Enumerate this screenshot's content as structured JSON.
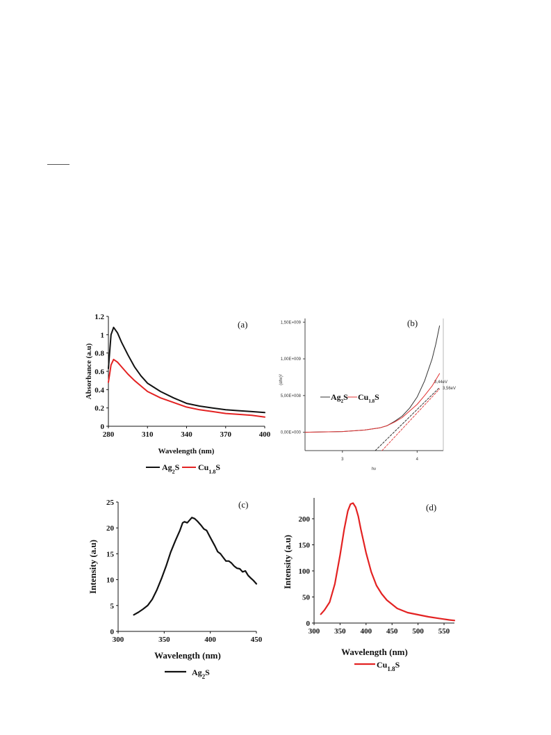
{
  "chart_data": [
    {
      "type": "line",
      "panel": "(a)",
      "xlabel": "Wavelength (nm)",
      "ylabel": "Absorbance (a.u)",
      "xlim": [
        280,
        400
      ],
      "ylim": [
        0,
        1.2
      ],
      "xticks": [
        "280",
        "310",
        "340",
        "370",
        "400"
      ],
      "yticks": [
        "0",
        "0.2",
        "0.4",
        "0.6",
        "0.8",
        "1",
        "1.2"
      ],
      "legend": "bottom",
      "series": [
        {
          "name": "Ag2S",
          "color": "#111111",
          "x": [
            280,
            282,
            284,
            287,
            290,
            295,
            300,
            305,
            310,
            320,
            330,
            340,
            350,
            360,
            370,
            380,
            390,
            400
          ],
          "y": [
            0.63,
            1.0,
            1.08,
            1.02,
            0.92,
            0.78,
            0.65,
            0.55,
            0.47,
            0.38,
            0.31,
            0.25,
            0.22,
            0.2,
            0.18,
            0.17,
            0.16,
            0.15
          ]
        },
        {
          "name": "Cu1.8S",
          "color": "#e32222",
          "x": [
            280,
            282,
            284,
            287,
            290,
            295,
            300,
            305,
            310,
            320,
            330,
            340,
            350,
            360,
            370,
            380,
            390,
            400
          ],
          "y": [
            0.48,
            0.67,
            0.73,
            0.7,
            0.65,
            0.57,
            0.5,
            0.44,
            0.38,
            0.31,
            0.26,
            0.21,
            0.18,
            0.16,
            0.14,
            0.13,
            0.12,
            0.1
          ]
        }
      ]
    },
    {
      "type": "line",
      "panel": "(b)",
      "xlabel": "hv",
      "ylabel": "(αhv)²",
      "xlim": [
        2.5,
        4.35
      ],
      "ylim": [
        -250000000,
        1550000000
      ],
      "xticks": [
        "3",
        "4"
      ],
      "yticks": [
        "0,00E+000",
        "5,00E+008",
        "1,00E+009",
        "1,50E+009"
      ],
      "legend": "center-left",
      "annotations": [
        "3,44eV",
        "3,56eV"
      ],
      "series": [
        {
          "name": "Ag2S",
          "color": "#333333",
          "x": [
            2.5,
            3.0,
            3.3,
            3.5,
            3.6,
            3.7,
            3.8,
            3.9,
            4.0,
            4.1,
            4.2,
            4.25,
            4.3
          ],
          "y": [
            0,
            10000000,
            30000000,
            60000000,
            90000000,
            150000000,
            220000000,
            330000000,
            480000000,
            700000000,
            1000000000,
            1200000000,
            1450000000
          ]
        },
        {
          "name": "Cu1.8S",
          "color": "#e03030",
          "x": [
            2.5,
            3.0,
            3.3,
            3.5,
            3.6,
            3.7,
            3.8,
            3.9,
            4.0,
            4.1,
            4.2,
            4.3
          ],
          "y": [
            0,
            10000000,
            30000000,
            60000000,
            90000000,
            140000000,
            200000000,
            290000000,
            380000000,
            500000000,
            630000000,
            800000000
          ]
        },
        {
          "name": "Ag2S fit",
          "color": "#222222",
          "dashed": true,
          "x": [
            3.44,
            4.3
          ],
          "y": [
            -250000000,
            610000000
          ]
        },
        {
          "name": "Cu1.8S fit",
          "color": "#e03030",
          "dashed": true,
          "x": [
            3.53,
            4.3
          ],
          "y": [
            -250000000,
            590000000
          ]
        }
      ]
    },
    {
      "type": "line",
      "panel": "(c)",
      "xlabel": "Wavelength (nm)",
      "ylabel": "Intensity (a.u)",
      "xlim": [
        300,
        450
      ],
      "ylim": [
        0,
        25
      ],
      "xticks": [
        "300",
        "350",
        "400",
        "450"
      ],
      "yticks": [
        "0",
        "5",
        "10",
        "15",
        "20",
        "25"
      ],
      "legend": "bottom",
      "series": [
        {
          "name": "Ag2S",
          "color": "#111111",
          "x": [
            317,
            322,
            327,
            332,
            337,
            342,
            347,
            352,
            357,
            362,
            367,
            370,
            372,
            375,
            378,
            380,
            383,
            386,
            390,
            393,
            396,
            399,
            402,
            405,
            408,
            411,
            414,
            417,
            420,
            423,
            426,
            429,
            432,
            435,
            438,
            441,
            444,
            447,
            450
          ],
          "y": [
            3.2,
            3.7,
            4.3,
            5.0,
            6.2,
            8.0,
            10.2,
            12.6,
            15.3,
            17.5,
            19.5,
            21.0,
            21.2,
            21.0,
            21.6,
            22.0,
            21.8,
            21.3,
            20.5,
            19.8,
            19.5,
            18.5,
            17.5,
            16.5,
            15.4,
            15.0,
            14.3,
            13.6,
            13.6,
            13.2,
            12.6,
            12.2,
            12.1,
            11.5,
            11.7,
            10.8,
            10.3,
            9.8,
            9.2
          ]
        }
      ]
    },
    {
      "type": "line",
      "panel": "(d)",
      "xlabel": "Wavelength (nm)",
      "ylabel": "Intensity (a.u)",
      "xlim": [
        300,
        570
      ],
      "ylim": [
        0,
        240
      ],
      "xticks": [
        "300",
        "350",
        "400",
        "450",
        "500",
        "550"
      ],
      "yticks": [
        "0",
        "50",
        "100",
        "150",
        "200"
      ],
      "legend": "bottom",
      "series": [
        {
          "name": "Cu1.8S",
          "color": "#e32222",
          "x": [
            313,
            320,
            330,
            340,
            350,
            358,
            365,
            370,
            375,
            380,
            385,
            390,
            400,
            410,
            420,
            430,
            440,
            450,
            460,
            470,
            480,
            500,
            520,
            540,
            560,
            570
          ],
          "y": [
            17,
            25,
            40,
            75,
            130,
            180,
            215,
            228,
            230,
            222,
            205,
            180,
            135,
            98,
            72,
            56,
            44,
            36,
            28,
            24,
            20,
            16,
            12,
            9,
            6,
            5
          ]
        }
      ]
    }
  ]
}
